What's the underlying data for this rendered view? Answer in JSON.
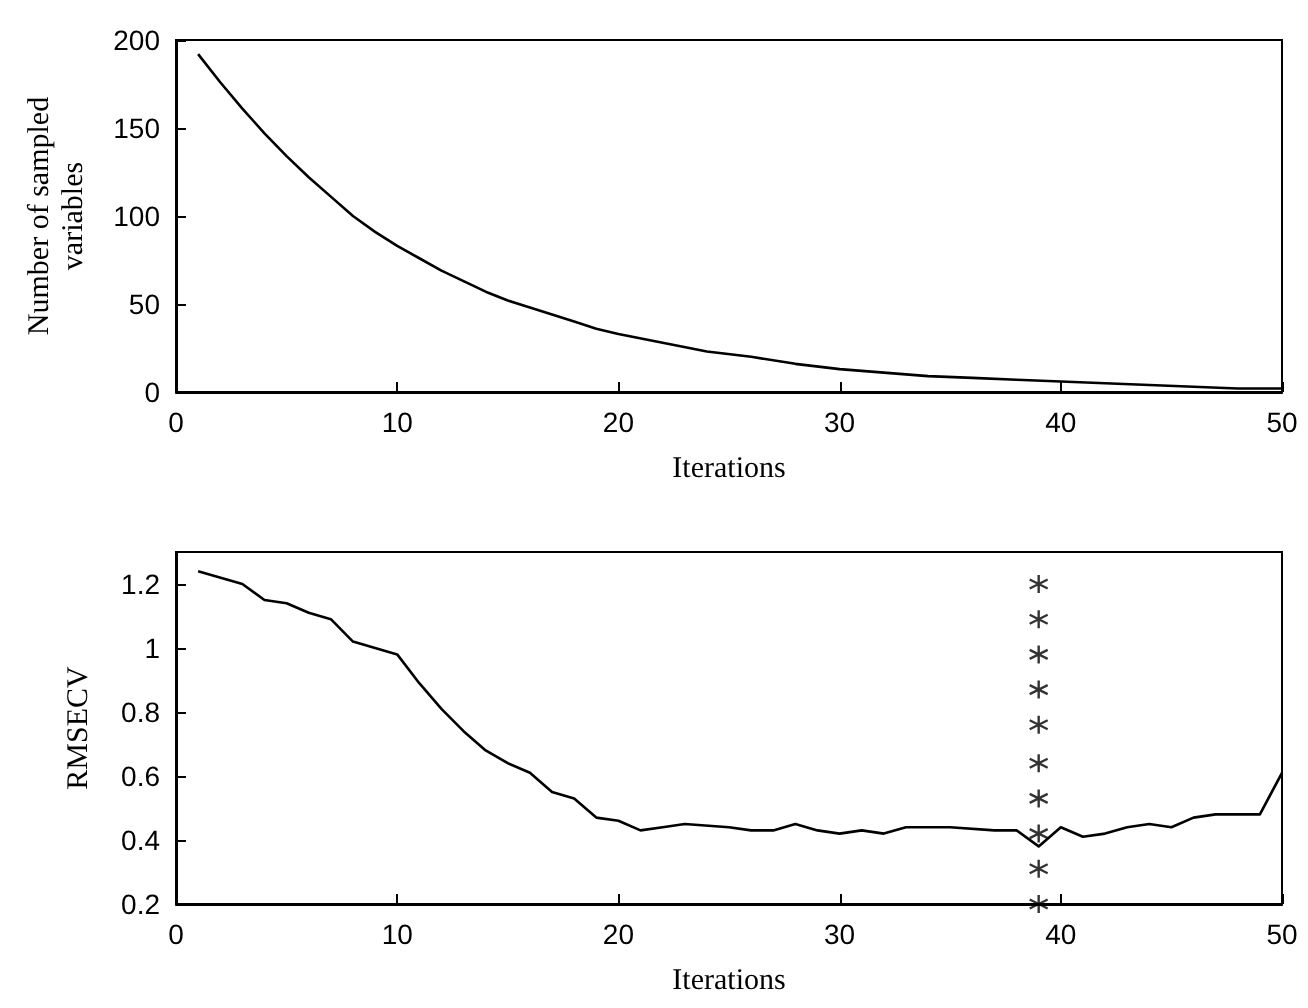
{
  "chart_data": [
    {
      "type": "line",
      "xlabel": "Iterations",
      "ylabel": "Number of sampled\nvariables",
      "xlim": [
        0,
        50
      ],
      "ylim": [
        0,
        200
      ],
      "xticks": [
        0,
        10,
        20,
        30,
        40,
        50
      ],
      "yticks": [
        0,
        50,
        100,
        150,
        200
      ],
      "marker": "none",
      "series": [
        {
          "color": "#000000",
          "x": [
            1,
            2,
            3,
            4,
            5,
            6,
            7,
            8,
            9,
            10,
            11,
            12,
            13,
            14,
            15,
            16,
            17,
            18,
            19,
            20,
            22,
            24,
            26,
            28,
            30,
            32,
            34,
            36,
            38,
            40,
            42,
            44,
            46,
            48,
            50
          ],
          "values": [
            192,
            176,
            161,
            147,
            134,
            122,
            111,
            100,
            91,
            83,
            76,
            69,
            63,
            57,
            52,
            48,
            44,
            40,
            36,
            33,
            28,
            23,
            20,
            16,
            13,
            11,
            9,
            8,
            7,
            6,
            5,
            4,
            3,
            2,
            2
          ]
        }
      ]
    },
    {
      "type": "line",
      "xlabel": "Iterations",
      "ylabel": "RMSECV",
      "xlim": [
        0,
        50
      ],
      "ylim": [
        0.2,
        1.3
      ],
      "xticks": [
        0,
        10,
        20,
        30,
        40,
        50
      ],
      "yticks": [
        0.2,
        0.4,
        0.6,
        0.8,
        1,
        1.2
      ],
      "marker": "none",
      "series": [
        {
          "color": "#000000",
          "x": [
            1,
            3,
            4,
            5,
            6,
            7,
            8,
            9,
            10,
            11,
            12,
            13,
            14,
            15,
            16,
            17,
            18,
            19,
            20,
            21,
            22,
            23,
            25,
            26,
            27,
            28,
            29,
            30,
            31,
            32,
            33,
            35,
            37,
            38,
            39,
            40,
            41,
            42,
            43,
            44,
            45,
            46,
            47,
            49,
            50
          ],
          "values": [
            1.24,
            1.2,
            1.15,
            1.14,
            1.11,
            1.09,
            1.02,
            1.0,
            0.98,
            0.89,
            0.81,
            0.74,
            0.68,
            0.64,
            0.61,
            0.55,
            0.53,
            0.47,
            0.46,
            0.43,
            0.44,
            0.45,
            0.44,
            0.43,
            0.43,
            0.45,
            0.43,
            0.42,
            0.43,
            0.42,
            0.44,
            0.44,
            0.43,
            0.43,
            0.38,
            0.44,
            0.41,
            0.42,
            0.44,
            0.45,
            0.44,
            0.47,
            0.48,
            0.48,
            0.61
          ]
        },
        {
          "type": "scatter",
          "marker": "cross",
          "color": "#000000",
          "x": [
            39,
            39,
            39,
            39,
            39,
            39,
            39,
            39,
            39,
            39
          ],
          "values": [
            0.2,
            0.31,
            0.42,
            0.53,
            0.64,
            0.76,
            0.87,
            0.98,
            1.09,
            1.2
          ]
        }
      ]
    }
  ]
}
